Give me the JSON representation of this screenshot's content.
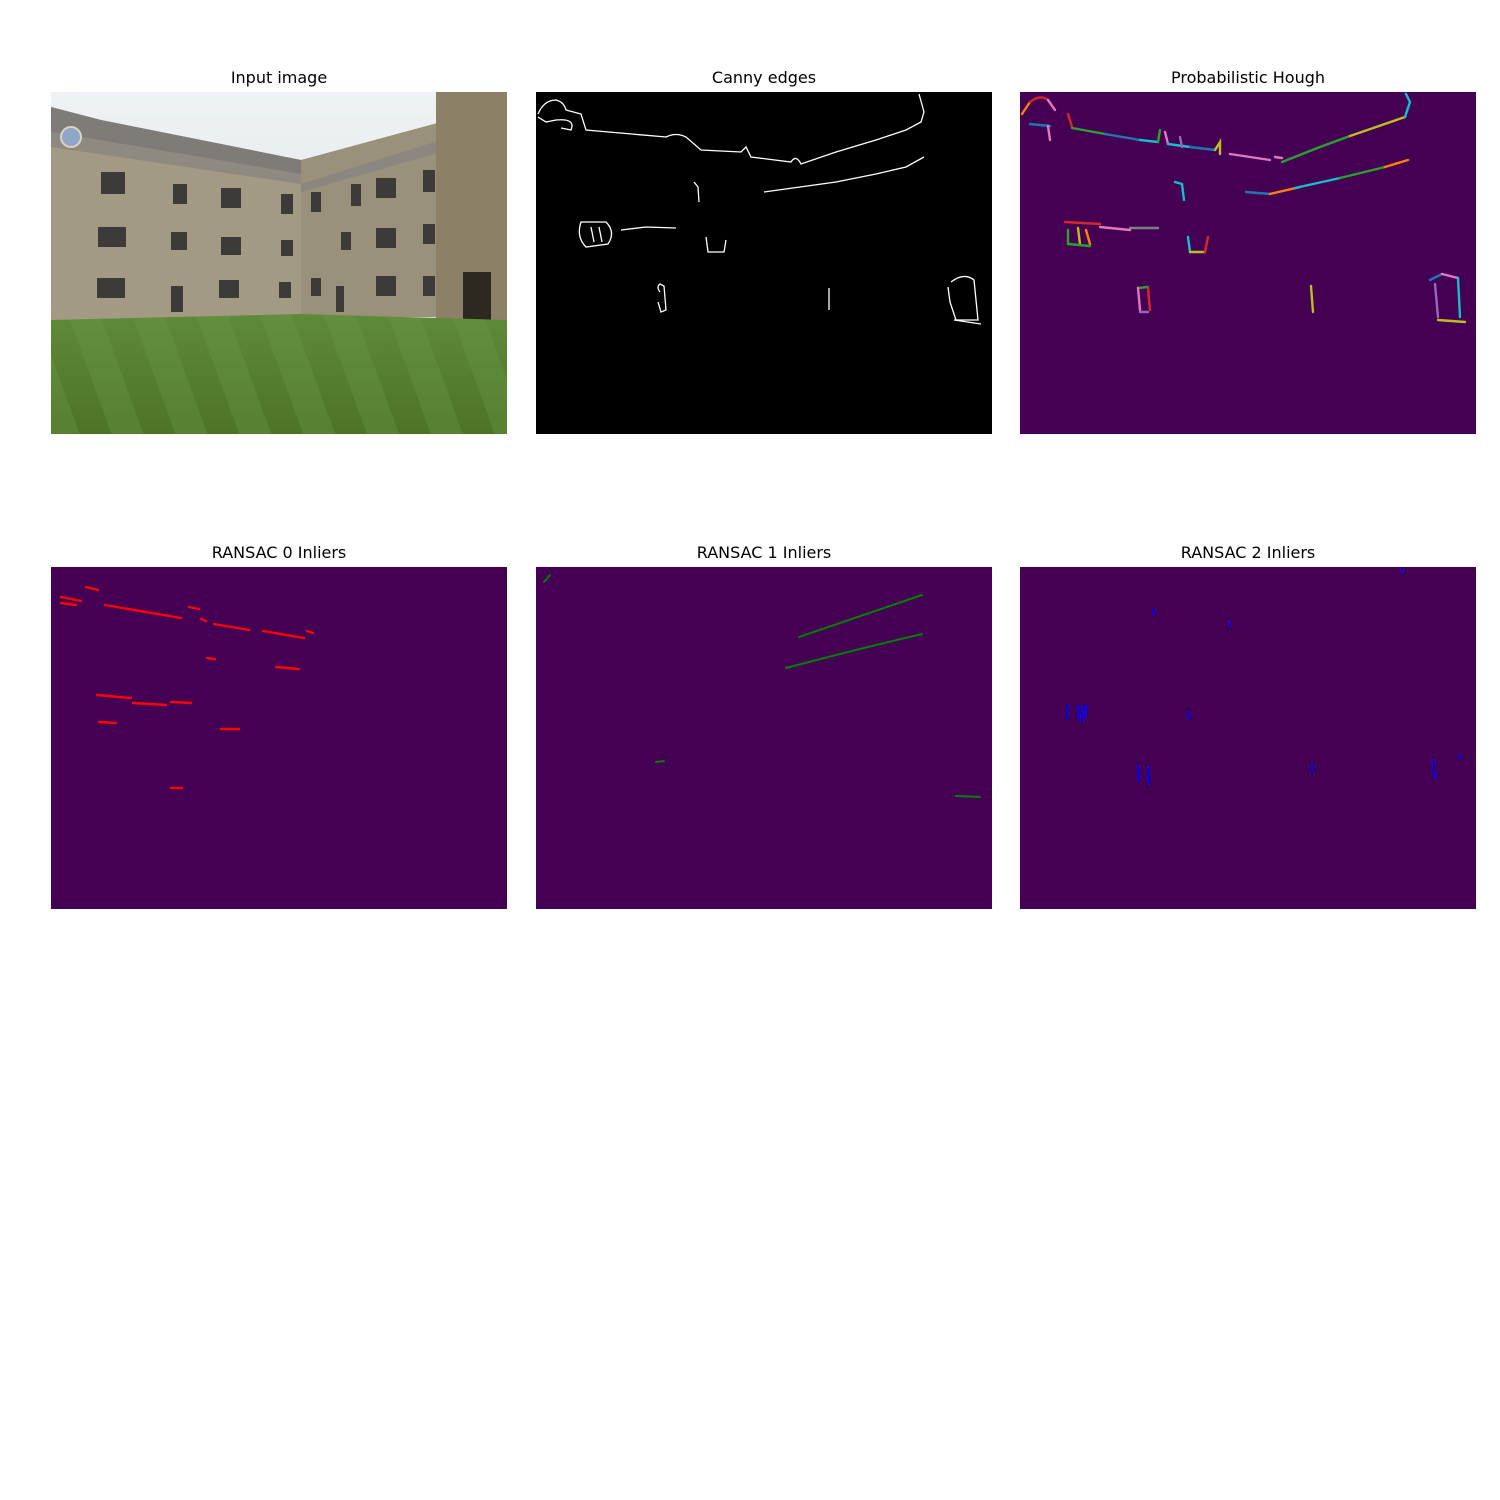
{
  "figure": {
    "panels": [
      {
        "id": "input",
        "title": "Input image"
      },
      {
        "id": "canny",
        "title": "Canny edges"
      },
      {
        "id": "hough",
        "title": "Probabilistic Hough"
      },
      {
        "id": "ransac0",
        "title": "RANSAC 0 Inliers"
      },
      {
        "id": "ransac1",
        "title": "RANSAC 1 Inliers"
      },
      {
        "id": "ransac2",
        "title": "RANSAC 2 Inliers"
      }
    ],
    "colors": {
      "background": "#440154",
      "edges": "#ffffff",
      "ransac0": "#ff0000",
      "ransac1": "#008000",
      "ransac2": "#0000ff"
    }
  }
}
